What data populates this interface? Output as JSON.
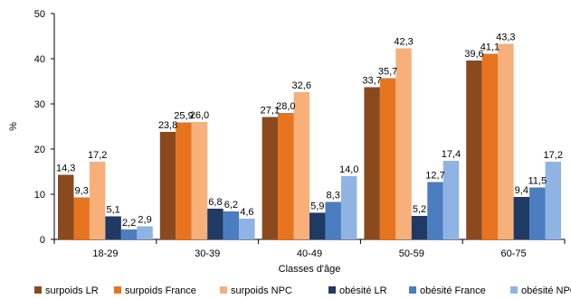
{
  "chart_data": {
    "type": "bar",
    "title": "",
    "xlabel": "Classes d'âge",
    "ylabel": "%",
    "ylim": [
      0,
      50
    ],
    "yticks": [
      0,
      10,
      20,
      30,
      40,
      50
    ],
    "grid": false,
    "legend_position": "bottom",
    "categories": [
      "18-29",
      "30-39",
      "40-49",
      "50-59",
      "60-75"
    ],
    "series": [
      {
        "name": "surpoids LR",
        "color": "#8B4A1E",
        "values": [
          14.3,
          23.8,
          27.1,
          33.7,
          39.6
        ],
        "labels": [
          "14,3",
          "23,8",
          "27,1",
          "33,7",
          "39,6"
        ]
      },
      {
        "name": "surpoids France",
        "color": "#E8731F",
        "values": [
          9.3,
          25.9,
          28.0,
          35.7,
          41.1
        ],
        "labels": [
          "9,3",
          "25,9",
          "28,0",
          "35,7",
          "41,1"
        ]
      },
      {
        "name": "surpoids NPC",
        "color": "#F7B07A",
        "values": [
          17.2,
          26.0,
          32.6,
          42.3,
          43.3
        ],
        "labels": [
          "17,2",
          "26,0",
          "32,6",
          "42,3",
          "43,3"
        ]
      },
      {
        "name": "obésité LR",
        "color": "#1F3A63",
        "values": [
          5.1,
          6.8,
          5.9,
          5.2,
          9.4
        ],
        "labels": [
          "5,1",
          "6,8",
          "5,9",
          "5,2",
          "9,4"
        ]
      },
      {
        "name": "obésité France",
        "color": "#4A7EC1",
        "values": [
          2.2,
          6.2,
          8.3,
          12.7,
          11.5
        ],
        "labels": [
          "2,2",
          "6,2",
          "8,3",
          "12,7",
          "11,5"
        ]
      },
      {
        "name": "obésité NPC",
        "color": "#8FB4E3",
        "values": [
          2.9,
          4.6,
          14.0,
          17.4,
          17.2
        ],
        "labels": [
          "2,9",
          "4,6",
          "14,0",
          "17,4",
          "17,2"
        ]
      }
    ]
  }
}
